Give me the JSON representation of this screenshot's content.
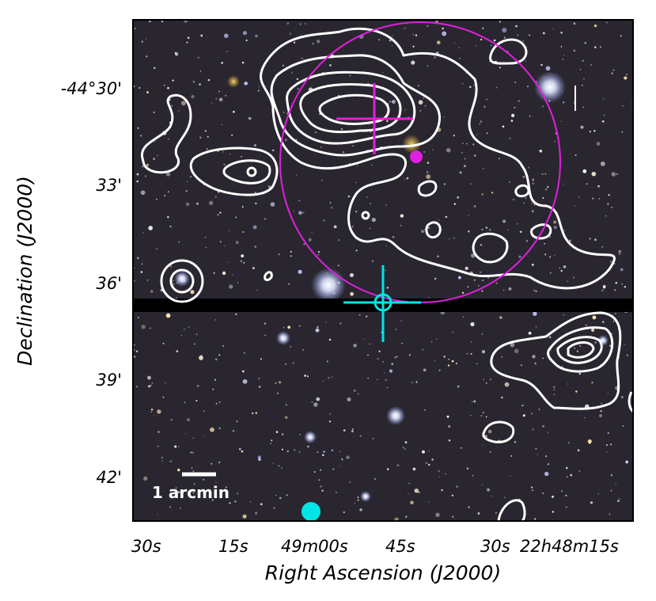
{
  "figure": {
    "x_axis_label": "Right Ascension (J2000)",
    "y_axis_label": "Declination (J2000)",
    "x_tick_labels": [
      "30s",
      "15s",
      "49m00s",
      "45s",
      "30s",
      "22h48m15s"
    ],
    "y_tick_labels": [
      "-44°30'",
      "33'",
      "36'",
      "39'",
      "42'"
    ],
    "scale_bar_label": "1 arcmin",
    "colors": {
      "contours": "#ffffff",
      "magenta_markers": "#e020e0",
      "cyan_markers": "#00e5e5",
      "sky_background": "#2a2630",
      "chip_gap": "#000000"
    }
  }
}
